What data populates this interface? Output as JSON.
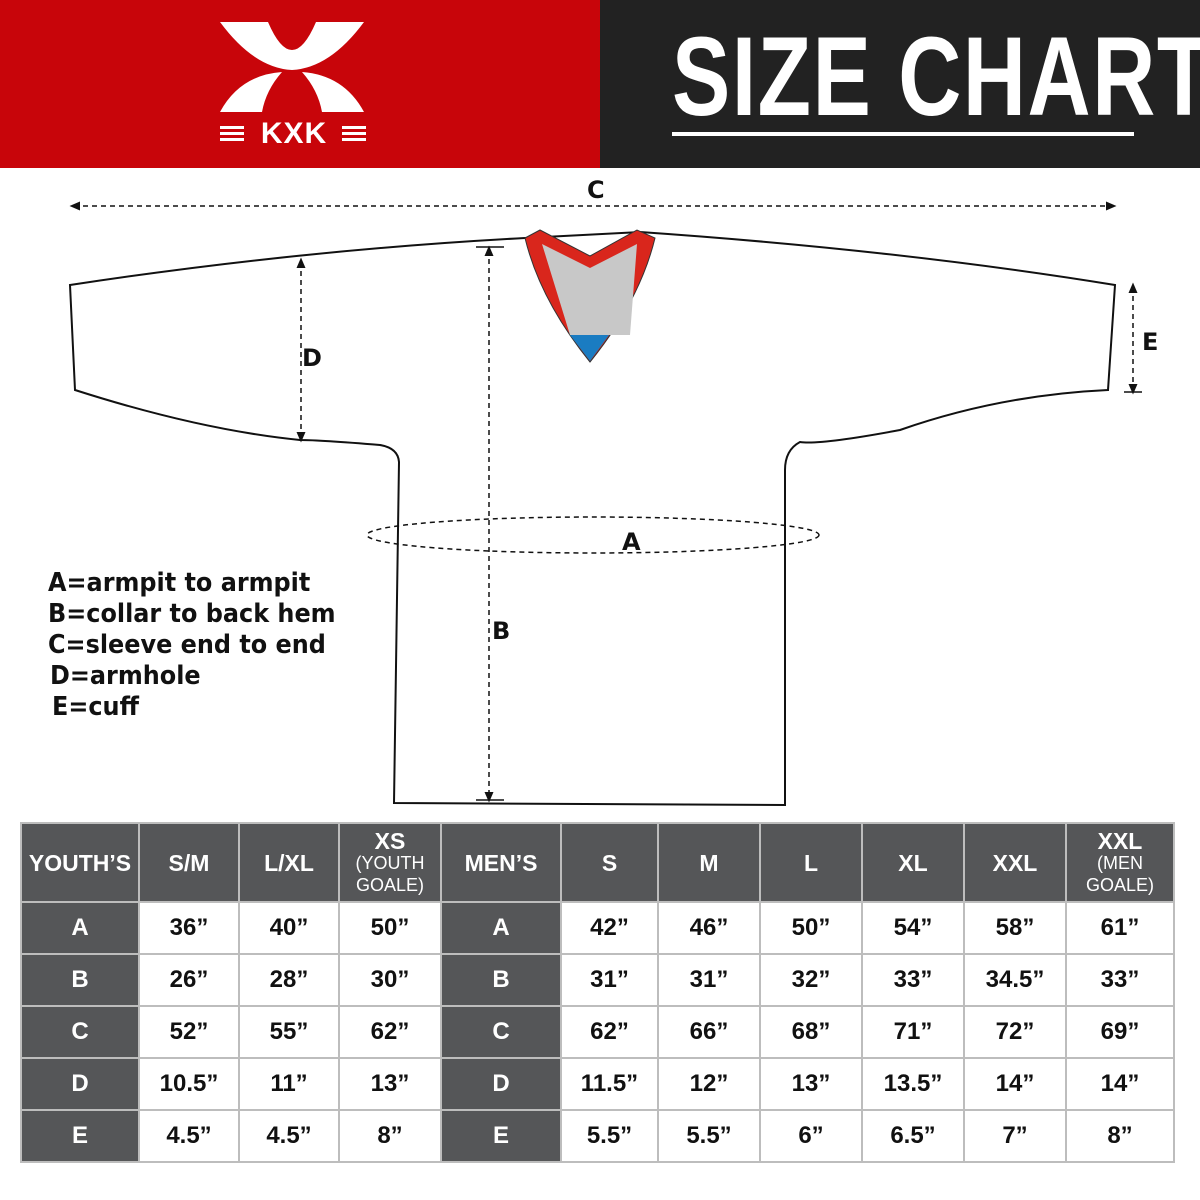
{
  "header": {
    "brand": "KXK",
    "title": "SIZE CHART",
    "brand_color": "#c8050a",
    "title_bg": "#222222"
  },
  "diagram": {
    "labels": {
      "a": "A",
      "b": "B",
      "c": "C",
      "d": "D",
      "e": "E"
    },
    "collar_colors": {
      "trim": "#d9261c",
      "inner": "#c8c8c8",
      "tip": "#1a7cc2"
    }
  },
  "legend": [
    "A=armpit to armpit",
    "B=collar to back hem",
    "C=sleeve end to end",
    "D=armhole",
    "E=cuff"
  ],
  "table": {
    "youth_header": "YOUTH’S",
    "youth_sizes": [
      {
        "label": "S/M",
        "sub": ""
      },
      {
        "label": "L/XL",
        "sub": ""
      },
      {
        "label": "XS",
        "sub": "(YOUTH GOALE)"
      }
    ],
    "men_header": "MEN’S",
    "men_sizes": [
      {
        "label": "S",
        "sub": ""
      },
      {
        "label": "M",
        "sub": ""
      },
      {
        "label": "L",
        "sub": ""
      },
      {
        "label": "XL",
        "sub": ""
      },
      {
        "label": "XXL",
        "sub": ""
      },
      {
        "label": "XXL",
        "sub": "(MEN GOALE)"
      }
    ],
    "rows": [
      {
        "label": "A",
        "youth": [
          "36”",
          "40”",
          "50”"
        ],
        "men": [
          "42”",
          "46”",
          "50”",
          "54”",
          "58”",
          "61”"
        ]
      },
      {
        "label": "B",
        "youth": [
          "26”",
          "28”",
          "30”"
        ],
        "men": [
          "31”",
          "31”",
          "32”",
          "33”",
          "34.5”",
          "33”"
        ]
      },
      {
        "label": "C",
        "youth": [
          "52”",
          "55”",
          "62”"
        ],
        "men": [
          "62”",
          "66”",
          "68”",
          "71”",
          "72”",
          "69”"
        ]
      },
      {
        "label": "D",
        "youth": [
          "10.5”",
          "11”",
          "13”"
        ],
        "men": [
          "11.5”",
          "12”",
          "13”",
          "13.5”",
          "14”",
          "14”"
        ]
      },
      {
        "label": "E",
        "youth": [
          "4.5”",
          "4.5”",
          "8”"
        ],
        "men": [
          "5.5”",
          "5.5”",
          "6”",
          "6.5”",
          "7”",
          "8”"
        ]
      }
    ]
  }
}
